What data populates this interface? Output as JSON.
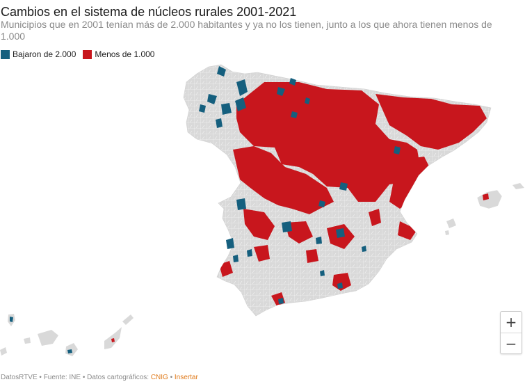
{
  "title": "Cambios en el sistema de núcleos rurales 2001-2021",
  "subtitle": "Municipios que en 2001 tenían más de 2.000 habitantes y ya no los tienen, junto a los que ahora tienen menos de 1.000",
  "legend": [
    {
      "label": "Bajaron de 2.000",
      "color": "#155f7e"
    },
    {
      "label": "Menos de 1.000",
      "color": "#c8161d"
    }
  ],
  "colors": {
    "base": "#d9d9d9",
    "border": "#ffffff"
  },
  "zoom": {
    "in_label": "+",
    "out_label": "−"
  },
  "footer": {
    "brand": "DatosRTVE",
    "sep1": " • ",
    "source": "Fuente: INE",
    "sep2": " • ",
    "carto_label": "Datos cartográficos: ",
    "carto_link": "CNIG",
    "sep3": " • ",
    "embed_link": "Insertar"
  }
}
